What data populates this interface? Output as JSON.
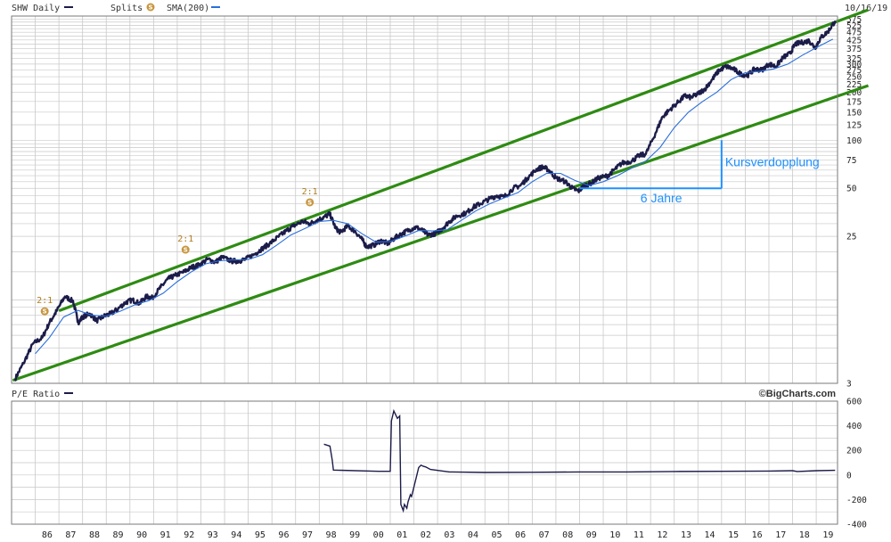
{
  "colors": {
    "price": "#1c1c4a",
    "sma": "#2a6fdb",
    "channel": "#2e8b12",
    "annotation": "#1e90ff",
    "split_badge": "#c8963e",
    "grid": "#c9c9c9",
    "frame": "#7a7a7a"
  },
  "header": {
    "series_label": "SHW Daily",
    "splits_label": "Splits",
    "splits_icon": "S",
    "sma_label": "SMA(200)",
    "date": "10/16/19"
  },
  "lower_header": {
    "label": "P/E Ratio",
    "brand": "©BigCharts.com"
  },
  "chart_data": [
    {
      "type": "line",
      "scale": "log",
      "ylim": [
        3,
        600
      ],
      "xlim": [
        1985.0,
        2019.9
      ],
      "x_ticks": [
        "86",
        "87",
        "88",
        "89",
        "90",
        "91",
        "92",
        "93",
        "94",
        "95",
        "96",
        "97",
        "98",
        "99",
        "00",
        "01",
        "02",
        "03",
        "04",
        "05",
        "06",
        "07",
        "08",
        "09",
        "10",
        "11",
        "12",
        "13",
        "14",
        "15",
        "16",
        "17",
        "18",
        "19"
      ],
      "y_ticks": [
        575,
        525,
        475,
        425,
        375,
        325,
        300,
        275,
        250,
        225,
        200,
        175,
        150,
        125,
        100,
        75,
        50,
        25,
        3
      ],
      "legend_placement": "top-left",
      "grid": true,
      "series": [
        {
          "name": "SHW Daily",
          "x": [
            1985.15,
            1985.5,
            1985.9,
            1986.3,
            1986.6,
            1986.9,
            1987.25,
            1987.6,
            1987.82,
            1988.0,
            1988.3,
            1988.6,
            1988.9,
            1989.2,
            1989.5,
            1989.8,
            1990.1,
            1990.4,
            1990.7,
            1990.95,
            1991.3,
            1991.6,
            1991.9,
            1992.3,
            1992.6,
            1992.9,
            1993.3,
            1993.6,
            1993.9,
            1994.3,
            1994.6,
            1994.9,
            1995.3,
            1995.6,
            1995.9,
            1996.3,
            1996.6,
            1996.9,
            1997.3,
            1997.6,
            1997.9,
            1998.2,
            1998.45,
            1998.7,
            1998.9,
            1999.2,
            1999.5,
            1999.8,
            2000.0,
            2000.3,
            2000.6,
            2000.9,
            2001.2,
            2001.5,
            2001.8,
            2002.1,
            2002.4,
            2002.6,
            2002.9,
            2003.2,
            2003.5,
            2003.8,
            2004.2,
            2004.5,
            2004.8,
            2005.2,
            2005.5,
            2005.8,
            2006.2,
            2006.5,
            2006.8,
            2007.2,
            2007.45,
            2007.7,
            2008.0,
            2008.4,
            2008.7,
            2008.95,
            2009.2,
            2009.5,
            2009.8,
            2010.2,
            2010.5,
            2010.8,
            2011.2,
            2011.5,
            2011.8,
            2012.2,
            2012.5,
            2012.8,
            2013.2,
            2013.45,
            2013.7,
            2014.0,
            2014.3,
            2014.6,
            2014.9,
            2015.2,
            2015.5,
            2015.8,
            2016.1,
            2016.4,
            2016.7,
            2017.0,
            2017.3,
            2017.6,
            2017.9,
            2018.1,
            2018.4,
            2018.7,
            2018.95,
            2019.2,
            2019.5,
            2019.8
          ],
          "values": [
            3.2,
            4.0,
            5.3,
            5.8,
            7.2,
            8.5,
            10.5,
            9.8,
            7.2,
            7.8,
            8.2,
            7.4,
            7.9,
            8.2,
            8.8,
            9.6,
            10.0,
            9.5,
            10.5,
            10.3,
            12.0,
            13.5,
            14.2,
            15.0,
            16.0,
            16.5,
            18.0,
            17.2,
            18.5,
            17.5,
            17.5,
            18.0,
            19.5,
            21.0,
            22.5,
            25.0,
            27.0,
            29.0,
            31.0,
            30.0,
            31.5,
            33.0,
            34.5,
            28.0,
            26.5,
            29.0,
            27.0,
            24.0,
            21.5,
            22.0,
            23.5,
            22.5,
            24.5,
            26.0,
            27.5,
            28.5,
            27.0,
            25.5,
            26.0,
            28.0,
            31.0,
            33.5,
            35.0,
            38.0,
            40.0,
            43.0,
            45.0,
            44.0,
            50.0,
            52.0,
            58.0,
            66.0,
            68.0,
            65.0,
            58.0,
            55.0,
            50.0,
            48.0,
            52.0,
            54.0,
            58.0,
            60.0,
            66.0,
            72.0,
            74.0,
            80.0,
            82.0,
            110.0,
            140.0,
            155.0,
            175.0,
            190.0,
            185.0,
            195.0,
            210.0,
            240.0,
            275.0,
            290.0,
            280.0,
            260.0,
            255.0,
            280.0,
            275.0,
            300.0,
            290.0,
            330.0,
            350.0,
            400.0,
            410.0,
            420.0,
            380.0,
            440.0,
            480.0,
            560.0
          ]
        },
        {
          "name": "SMA(200)",
          "x": [
            1986.0,
            1986.6,
            1987.2,
            1987.8,
            1988.4,
            1989.0,
            1989.6,
            1990.2,
            1990.8,
            1991.4,
            1992.0,
            1992.6,
            1993.2,
            1993.8,
            1994.4,
            1995.0,
            1995.6,
            1996.2,
            1996.8,
            1997.4,
            1998.0,
            1998.6,
            1999.2,
            1999.8,
            2000.4,
            2001.0,
            2001.6,
            2002.2,
            2002.8,
            2003.4,
            2004.0,
            2004.6,
            2005.2,
            2005.8,
            2006.4,
            2007.0,
            2007.6,
            2008.2,
            2008.8,
            2009.4,
            2010.0,
            2010.6,
            2011.2,
            2011.8,
            2012.4,
            2013.0,
            2013.6,
            2014.2,
            2014.8,
            2015.4,
            2016.0,
            2016.6,
            2017.2,
            2017.8,
            2018.4,
            2019.0,
            2019.7
          ],
          "values": [
            4.6,
            5.8,
            7.8,
            8.6,
            8.0,
            7.9,
            8.5,
            9.3,
            9.9,
            11.0,
            13.0,
            15.0,
            16.8,
            17.6,
            17.8,
            17.9,
            19.2,
            22.0,
            25.5,
            28.0,
            31.0,
            31.5,
            30.0,
            26.0,
            23.0,
            23.2,
            25.0,
            27.2,
            27.0,
            27.5,
            31.5,
            36.0,
            40.0,
            43.5,
            47.0,
            55.0,
            62.0,
            62.0,
            56.0,
            52.0,
            55.0,
            60.0,
            67.0,
            74.0,
            90.0,
            120.0,
            150.0,
            175.0,
            200.0,
            240.0,
            265.0,
            270.0,
            280.0,
            300.0,
            340.0,
            380.0,
            430.0
          ]
        }
      ],
      "channel_lines": [
        {
          "x": [
            1987.05,
            2019.95
          ],
          "values": [
            8.6,
            560.0
          ]
        },
        {
          "x": [
            1985.1,
            2019.95
          ],
          "values": [
            3.15,
            190.0
          ]
        }
      ],
      "splits": [
        {
          "x": 1986.4,
          "label": "2:1"
        },
        {
          "x": 1992.35,
          "label": "2:1"
        },
        {
          "x": 1997.6,
          "label": "2:1"
        }
      ],
      "annotations": {
        "doubling_label": "Kursverdopplung",
        "years_label": "6 Jahre",
        "bracket": {
          "x_start": 2009.0,
          "x_end": 2015.0,
          "y_low": 50.0,
          "y_high": 100.0
        }
      }
    },
    {
      "type": "line",
      "ylim": [
        -400,
        600
      ],
      "y_ticks": [
        600,
        400,
        200,
        0,
        -200,
        -400
      ],
      "series": [
        {
          "name": "P/E Ratio",
          "x": [
            1998.2,
            1998.45,
            1998.55,
            1998.6,
            2000.5,
            2000.9,
            2001.0,
            2001.05,
            2001.15,
            2001.3,
            2001.4,
            2001.45,
            2001.55,
            2001.6,
            2001.7,
            2001.75,
            2001.85,
            2001.9,
            2002.1,
            2002.2,
            2002.3,
            2002.4,
            2002.5,
            2002.7,
            2003.5,
            2005.0,
            2007.0,
            2009.0,
            2011.0,
            2013.0,
            2015.0,
            2017.0,
            2018.0,
            2018.2,
            2019.0,
            2019.8
          ],
          "values": [
            250,
            235,
            120,
            40,
            30,
            30,
            30,
            440,
            520,
            460,
            480,
            -240,
            -290,
            -240,
            -270,
            -220,
            -160,
            -175,
            -20,
            60,
            80,
            70,
            65,
            45,
            25,
            20,
            22,
            25,
            25,
            28,
            30,
            32,
            35,
            28,
            35,
            38
          ]
        }
      ]
    }
  ]
}
